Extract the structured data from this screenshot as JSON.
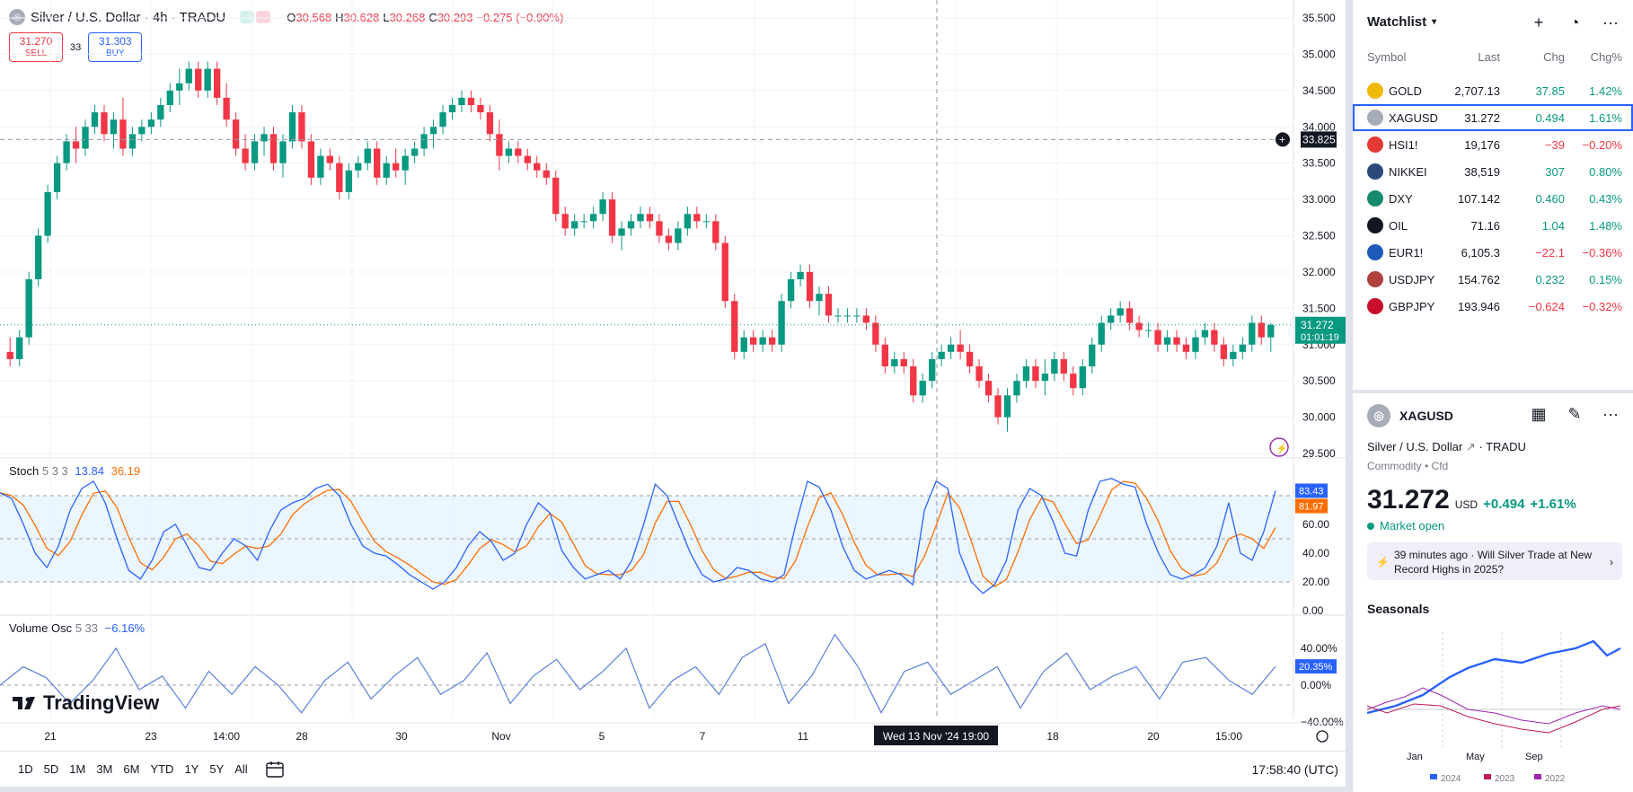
{
  "header": {
    "symbol_title": "Silver / U.S. Dollar · 4h · TRADU",
    "ohlc": [
      {
        "k": "O",
        "v": "30.568"
      },
      {
        "k": "H",
        "v": "30.628"
      },
      {
        "k": "L",
        "v": "30.268"
      },
      {
        "k": "C",
        "v": "30.293"
      },
      {
        "k": "",
        "v": "−0.275 (−0.90%)"
      }
    ]
  },
  "trade": {
    "sell_price": "31.270",
    "sell_label": "SELL",
    "spread": "33",
    "buy_price": "31.303",
    "buy_label": "BUY"
  },
  "price_axis": [
    "35.500",
    "35.000",
    "34.500",
    "34.000",
    "33.500",
    "33.000",
    "32.500",
    "32.000",
    "31.500",
    "31.000",
    "30.500",
    "30.000",
    "29.500"
  ],
  "crosshair_price": "33.825",
  "last_price_tag": {
    "price": "31.272",
    "countdown": "01:01:19"
  },
  "stoch": {
    "name": "Stoch",
    "params": "5 3 3",
    "k": "13.84",
    "d": "36.19",
    "axis": [
      "60.00",
      "40.00",
      "20.00",
      "0.00"
    ],
    "tag_k": "83.43",
    "tag_d": "81.97"
  },
  "volosc": {
    "name": "Volume Osc",
    "params": "5 33",
    "value": "−6.16%",
    "axis": [
      "40.00%",
      "0.00%",
      "−40.00%"
    ],
    "tag": "20.35%"
  },
  "logo_text": "TradingView",
  "time_axis": [
    "21",
    "23",
    "14:00",
    "28",
    "30",
    "Nov",
    "5",
    "7",
    "11",
    "18",
    "20",
    "15:00"
  ],
  "crosshair_time": "Wed 13 Nov '24   19:00",
  "bottom_bar": {
    "ranges": [
      "1D",
      "5D",
      "1M",
      "3M",
      "6M",
      "YTD",
      "1Y",
      "5Y",
      "All"
    ],
    "clock": "17:58:40 (UTC)"
  },
  "watchlist": {
    "title": "Watchlist",
    "columns": {
      "symbol": "Symbol",
      "last": "Last",
      "chg": "Chg",
      "chgp": "Chg%"
    },
    "rows": [
      {
        "symbol": "GOLD",
        "last": "2,707.13",
        "chg": "37.85",
        "chgp": "1.42%",
        "dir": "up",
        "icon_color": "#f0b90b",
        "icon": "gold-icon",
        "selected": false
      },
      {
        "symbol": "XAGUSD",
        "last": "31.272",
        "chg": "0.494",
        "chgp": "1.61%",
        "dir": "up",
        "icon_color": "#a6adb8",
        "icon": "silver-icon",
        "selected": true
      },
      {
        "symbol": "HSI1!",
        "last": "19,176",
        "chg": "−39",
        "chgp": "−0.20%",
        "dir": "down",
        "icon_color": "#e53935",
        "icon": "hsi-icon",
        "selected": false
      },
      {
        "symbol": "NIKKEI",
        "last": "38,519",
        "chg": "307",
        "chgp": "0.80%",
        "dir": "up",
        "icon_color": "#2b4a7a",
        "icon": "nikkei-icon",
        "selected": false
      },
      {
        "symbol": "DXY",
        "last": "107.142",
        "chg": "0.460",
        "chgp": "0.43%",
        "dir": "up",
        "icon_color": "#178a6e",
        "icon": "dollar-icon",
        "selected": false
      },
      {
        "symbol": "OIL",
        "last": "71.16",
        "chg": "1.04",
        "chgp": "1.48%",
        "dir": "up",
        "icon_color": "#131722",
        "icon": "oil-icon",
        "selected": false
      },
      {
        "symbol": "EUR1!",
        "last": "6,105.3",
        "chg": "−22.1",
        "chgp": "−0.36%",
        "dir": "down",
        "icon_color": "#1e5bb8",
        "icon": "eu-flag-icon",
        "selected": false
      },
      {
        "symbol": "USDJPY",
        "last": "154.762",
        "chg": "0.232",
        "chgp": "0.15%",
        "dir": "up",
        "icon_color": "#b0413e",
        "icon": "us-flag-icon",
        "selected": false
      },
      {
        "symbol": "GBPJPY",
        "last": "193.946",
        "chg": "−0.624",
        "chgp": "−0.32%",
        "dir": "down",
        "icon_color": "#c8102e",
        "icon": "uk-flag-icon",
        "selected": false
      }
    ]
  },
  "details": {
    "symbol": "XAGUSD",
    "description": "Silver / U.S. Dollar",
    "exchange": "· TRADU",
    "category": "Commodity • Cfd",
    "price": "31.272",
    "currency": "USD",
    "change": "+0.494",
    "change_pct": "+1.61%",
    "status": "Market open",
    "news": "39 minutes ago · Will Silver Trade at New Record Highs in 2025?",
    "seasonals_title": "Seasonals",
    "seasonals_x": [
      "Jan",
      "May",
      "Sep"
    ],
    "seasonals_legend": [
      "2024",
      "2023",
      "2022"
    ]
  },
  "colors": {
    "up": "#089981",
    "down": "#f23645",
    "blue": "#2962ff",
    "orange": "#ff6d00",
    "stoch_k": "#2962ff",
    "stoch_d": "#ff6d00",
    "volosc": "#5b7fdb"
  },
  "chart_data": {
    "type": "candlestick",
    "symbol": "Silver / U.S. Dollar",
    "timeframe": "4h",
    "price_range": [
      29.5,
      35.5
    ],
    "candles": [
      [
        30.9,
        31.1,
        30.7,
        30.8
      ],
      [
        30.8,
        31.2,
        30.7,
        31.1
      ],
      [
        31.1,
        32.0,
        31.0,
        31.9
      ],
      [
        31.9,
        32.6,
        31.8,
        32.5
      ],
      [
        32.5,
        33.2,
        32.4,
        33.1
      ],
      [
        33.1,
        33.6,
        33.0,
        33.5
      ],
      [
        33.5,
        33.9,
        33.4,
        33.8
      ],
      [
        33.8,
        34.0,
        33.5,
        33.7
      ],
      [
        33.7,
        34.1,
        33.6,
        34.0
      ],
      [
        34.0,
        34.3,
        33.9,
        34.2
      ],
      [
        34.2,
        34.3,
        33.8,
        33.9
      ],
      [
        33.9,
        34.2,
        33.7,
        34.1
      ],
      [
        34.1,
        34.4,
        33.6,
        33.7
      ],
      [
        33.7,
        34.0,
        33.6,
        33.9
      ],
      [
        33.9,
        34.1,
        33.8,
        34.0
      ],
      [
        34.0,
        34.2,
        33.9,
        34.1
      ],
      [
        34.1,
        34.4,
        34.0,
        34.3
      ],
      [
        34.3,
        34.6,
        34.2,
        34.5
      ],
      [
        34.5,
        34.8,
        34.3,
        34.6
      ],
      [
        34.6,
        34.9,
        34.5,
        34.8
      ],
      [
        34.8,
        34.9,
        34.4,
        34.5
      ],
      [
        34.5,
        34.9,
        34.4,
        34.8
      ],
      [
        34.8,
        34.9,
        34.3,
        34.4
      ],
      [
        34.4,
        34.6,
        34.0,
        34.1
      ],
      [
        34.1,
        34.2,
        33.6,
        33.7
      ],
      [
        33.7,
        33.9,
        33.4,
        33.5
      ],
      [
        33.5,
        33.9,
        33.4,
        33.8
      ],
      [
        33.8,
        34.0,
        33.6,
        33.9
      ],
      [
        33.9,
        34.0,
        33.4,
        33.5
      ],
      [
        33.5,
        33.9,
        33.3,
        33.8
      ],
      [
        33.8,
        34.3,
        33.7,
        34.2
      ],
      [
        34.2,
        34.3,
        33.7,
        33.8
      ],
      [
        33.8,
        33.9,
        33.2,
        33.3
      ],
      [
        33.3,
        33.7,
        33.2,
        33.6
      ],
      [
        33.6,
        33.7,
        33.4,
        33.5
      ],
      [
        33.5,
        33.6,
        33.0,
        33.1
      ],
      [
        33.1,
        33.5,
        33.0,
        33.4
      ],
      [
        33.4,
        33.6,
        33.3,
        33.5
      ],
      [
        33.5,
        33.8,
        33.4,
        33.7
      ],
      [
        33.7,
        33.8,
        33.2,
        33.3
      ],
      [
        33.3,
        33.6,
        33.2,
        33.5
      ],
      [
        33.5,
        33.7,
        33.3,
        33.4
      ],
      [
        33.4,
        33.7,
        33.2,
        33.6
      ],
      [
        33.6,
        33.8,
        33.5,
        33.7
      ],
      [
        33.7,
        34.0,
        33.6,
        33.9
      ],
      [
        33.9,
        34.1,
        33.7,
        34.0
      ],
      [
        34.0,
        34.3,
        33.9,
        34.2
      ],
      [
        34.2,
        34.4,
        34.1,
        34.3
      ],
      [
        34.3,
        34.5,
        34.2,
        34.4
      ],
      [
        34.4,
        34.5,
        34.2,
        34.3
      ],
      [
        34.3,
        34.4,
        34.1,
        34.2
      ],
      [
        34.2,
        34.3,
        33.8,
        33.9
      ],
      [
        33.9,
        34.1,
        33.4,
        33.6
      ],
      [
        33.6,
        33.8,
        33.5,
        33.7
      ],
      [
        33.7,
        33.8,
        33.5,
        33.6
      ],
      [
        33.6,
        33.7,
        33.4,
        33.5
      ],
      [
        33.5,
        33.6,
        33.3,
        33.4
      ],
      [
        33.4,
        33.5,
        33.2,
        33.3
      ],
      [
        33.3,
        33.4,
        32.7,
        32.8
      ],
      [
        32.8,
        32.9,
        32.5,
        32.6
      ],
      [
        32.6,
        32.8,
        32.5,
        32.7
      ],
      [
        32.7,
        32.8,
        32.6,
        32.7
      ],
      [
        32.7,
        32.9,
        32.6,
        32.8
      ],
      [
        32.8,
        33.1,
        32.7,
        33.0
      ],
      [
        33.0,
        33.1,
        32.4,
        32.5
      ],
      [
        32.5,
        32.7,
        32.3,
        32.6
      ],
      [
        32.6,
        32.8,
        32.5,
        32.7
      ],
      [
        32.7,
        32.9,
        32.6,
        32.8
      ],
      [
        32.8,
        32.9,
        32.6,
        32.7
      ],
      [
        32.7,
        32.8,
        32.4,
        32.5
      ],
      [
        32.5,
        32.6,
        32.3,
        32.4
      ],
      [
        32.4,
        32.7,
        32.3,
        32.6
      ],
      [
        32.6,
        32.9,
        32.5,
        32.8
      ],
      [
        32.8,
        32.9,
        32.6,
        32.7
      ],
      [
        32.7,
        32.8,
        32.6,
        32.7
      ],
      [
        32.7,
        32.8,
        32.3,
        32.4
      ],
      [
        32.4,
        32.5,
        31.5,
        31.6
      ],
      [
        31.6,
        31.7,
        30.8,
        30.9
      ],
      [
        30.9,
        31.2,
        30.8,
        31.1
      ],
      [
        31.1,
        31.2,
        30.9,
        31.0
      ],
      [
        31.0,
        31.2,
        30.9,
        31.1
      ],
      [
        31.1,
        31.2,
        30.9,
        31.0
      ],
      [
        31.0,
        31.7,
        30.9,
        31.6
      ],
      [
        31.6,
        32.0,
        31.5,
        31.9
      ],
      [
        31.9,
        32.1,
        31.8,
        32.0
      ],
      [
        32.0,
        32.1,
        31.5,
        31.6
      ],
      [
        31.6,
        31.8,
        31.4,
        31.7
      ],
      [
        31.7,
        31.8,
        31.3,
        31.4
      ],
      [
        31.4,
        31.5,
        31.3,
        31.4
      ],
      [
        31.4,
        31.5,
        31.3,
        31.4
      ],
      [
        31.4,
        31.5,
        31.3,
        31.4
      ],
      [
        31.4,
        31.5,
        31.2,
        31.3
      ],
      [
        31.3,
        31.4,
        30.9,
        31.0
      ],
      [
        31.0,
        31.1,
        30.6,
        30.7
      ],
      [
        30.7,
        30.9,
        30.6,
        30.8
      ],
      [
        30.8,
        30.9,
        30.6,
        30.7
      ],
      [
        30.7,
        30.8,
        30.2,
        30.3
      ],
      [
        30.3,
        30.6,
        30.2,
        30.5
      ],
      [
        30.5,
        30.9,
        30.4,
        30.8
      ],
      [
        30.8,
        31.0,
        30.7,
        30.9
      ],
      [
        30.9,
        31.1,
        30.8,
        31.0
      ],
      [
        31.0,
        31.2,
        30.8,
        30.9
      ],
      [
        30.9,
        31.0,
        30.6,
        30.7
      ],
      [
        30.7,
        30.8,
        30.4,
        30.5
      ],
      [
        30.5,
        30.6,
        30.2,
        30.3
      ],
      [
        30.3,
        30.4,
        29.9,
        30.0
      ],
      [
        30.0,
        30.4,
        29.8,
        30.3
      ],
      [
        30.3,
        30.6,
        30.2,
        30.5
      ],
      [
        30.5,
        30.8,
        30.4,
        30.7
      ],
      [
        30.7,
        30.8,
        30.4,
        30.5
      ],
      [
        30.5,
        30.8,
        30.3,
        30.6
      ],
      [
        30.6,
        30.9,
        30.5,
        30.8
      ],
      [
        30.8,
        30.9,
        30.5,
        30.6
      ],
      [
        30.6,
        30.7,
        30.3,
        30.4
      ],
      [
        30.4,
        30.8,
        30.3,
        30.7
      ],
      [
        30.7,
        31.1,
        30.6,
        31.0
      ],
      [
        31.0,
        31.4,
        30.9,
        31.3
      ],
      [
        31.3,
        31.5,
        31.2,
        31.4
      ],
      [
        31.4,
        31.6,
        31.3,
        31.5
      ],
      [
        31.5,
        31.6,
        31.2,
        31.3
      ],
      [
        31.3,
        31.4,
        31.1,
        31.2
      ],
      [
        31.2,
        31.3,
        31.1,
        31.2
      ],
      [
        31.2,
        31.3,
        30.9,
        31.0
      ],
      [
        31.0,
        31.2,
        30.9,
        31.1
      ],
      [
        31.1,
        31.2,
        30.9,
        31.0
      ],
      [
        31.0,
        31.1,
        30.8,
        30.9
      ],
      [
        30.9,
        31.2,
        30.8,
        31.1
      ],
      [
        31.1,
        31.3,
        31.0,
        31.2
      ],
      [
        31.2,
        31.3,
        30.9,
        31.0
      ],
      [
        31.0,
        31.1,
        30.7,
        30.8
      ],
      [
        30.8,
        31.0,
        30.7,
        30.9
      ],
      [
        30.9,
        31.1,
        30.8,
        31.0
      ],
      [
        31.0,
        31.4,
        30.9,
        31.3
      ],
      [
        31.3,
        31.4,
        31.0,
        31.1
      ],
      [
        31.1,
        31.3,
        30.9,
        31.272
      ]
    ],
    "stoch_k": [
      82,
      78,
      60,
      40,
      30,
      45,
      70,
      85,
      90,
      75,
      50,
      28,
      22,
      35,
      55,
      60,
      45,
      30,
      28,
      40,
      50,
      45,
      35,
      55,
      70,
      75,
      78,
      85,
      88,
      80,
      60,
      45,
      40,
      38,
      32,
      25,
      20,
      15,
      20,
      30,
      45,
      55,
      48,
      35,
      40,
      60,
      75,
      68,
      42,
      30,
      22,
      25,
      28,
      22,
      35,
      60,
      88,
      80,
      60,
      40,
      25,
      20,
      22,
      30,
      28,
      22,
      20,
      25,
      60,
      90,
      86,
      70,
      45,
      28,
      22,
      25,
      28,
      25,
      18,
      70,
      90,
      85,
      40,
      20,
      12,
      18,
      35,
      70,
      85,
      80,
      62,
      40,
      38,
      70,
      90,
      92,
      88,
      86,
      60,
      40,
      25,
      22,
      25,
      30,
      45,
      75,
      40,
      35,
      55,
      83.43
    ],
    "volosc_pct": [
      0,
      20,
      8,
      -20,
      5,
      40,
      -5,
      10,
      -25,
      15,
      -10,
      20,
      0,
      -30,
      5,
      25,
      -15,
      10,
      30,
      -10,
      5,
      35,
      -20,
      10,
      28,
      -5,
      15,
      40,
      -25,
      5,
      20,
      -10,
      30,
      45,
      -20,
      10,
      55,
      20,
      -30,
      15,
      25,
      -10,
      5,
      20,
      -25,
      15,
      35,
      -5,
      10,
      20,
      -15,
      25,
      30,
      5,
      -10,
      20.35
    ]
  }
}
